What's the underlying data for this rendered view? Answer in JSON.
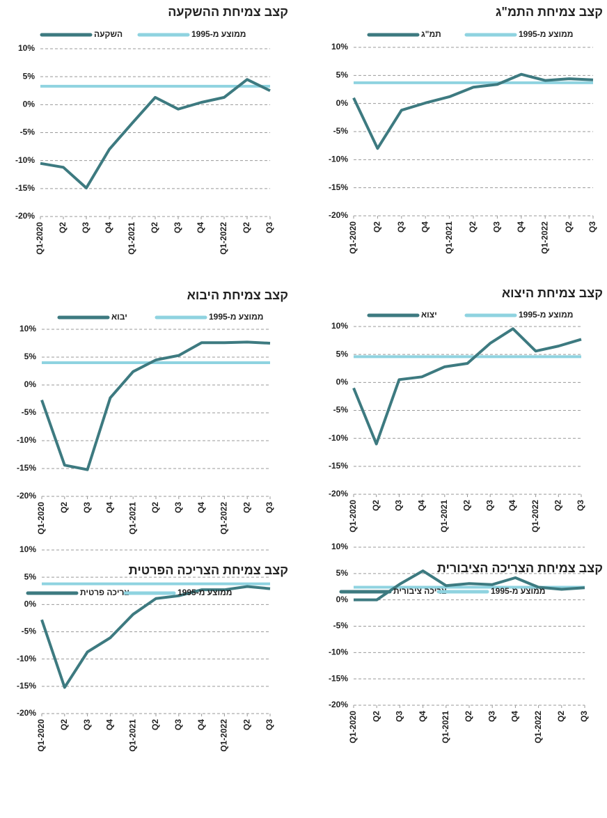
{
  "chart_data": [
    {
      "type": "line",
      "title": "קצב צמיחת התמ\"ג",
      "categories": [
        "Q1-2020",
        "Q2",
        "Q3",
        "Q4",
        "Q1-2021",
        "Q2",
        "Q3",
        "Q4",
        "Q1-2022",
        "Q2",
        "Q3"
      ],
      "series": [
        {
          "name": "תמ\"ג",
          "color": "#3d7a80",
          "values": [
            1.0,
            -8.0,
            -1.2,
            0.1,
            1.2,
            2.9,
            3.4,
            5.2,
            4.1,
            4.4,
            4.2
          ]
        },
        {
          "name": "ממוצע מ-1995",
          "color": "#8fd3e0",
          "values": [
            3.7,
            3.7,
            3.7,
            3.7,
            3.7,
            3.7,
            3.7,
            3.7,
            3.7,
            3.7,
            3.7
          ]
        }
      ],
      "ylim": [
        -20,
        10
      ],
      "yticks": [
        {
          "value": -20,
          "label": "-20%"
        },
        {
          "value": -15,
          "label": "-15%"
        },
        {
          "value": -10,
          "label": "-10%"
        },
        {
          "value": -5,
          "label": "-5%"
        },
        {
          "value": 0,
          "label": "0%"
        },
        {
          "value": 5,
          "label": "5%"
        },
        {
          "value": 10,
          "label": "10%"
        }
      ],
      "grid": true
    },
    {
      "type": "line",
      "title": "קצב צמיחת ההשקעה",
      "categories": [
        "Q1-2020",
        "Q2",
        "Q3",
        "Q4",
        "Q1-2021",
        "Q2",
        "Q3",
        "Q4",
        "Q1-2022",
        "Q2",
        "Q3"
      ],
      "series": [
        {
          "name": "השקעה",
          "color": "#3d7a80",
          "values": [
            -10.5,
            -11.2,
            -14.9,
            -8.0,
            -3.3,
            1.3,
            -0.8,
            0.4,
            1.3,
            4.5,
            2.5
          ]
        },
        {
          "name": "ממוצע מ-1995",
          "color": "#8fd3e0",
          "values": [
            3.3,
            3.3,
            3.3,
            3.3,
            3.3,
            3.3,
            3.3,
            3.3,
            3.3,
            3.3,
            3.3
          ]
        }
      ],
      "ylim": [
        -20,
        10
      ],
      "yticks": [
        {
          "value": -20,
          "label": "-20%"
        },
        {
          "value": -15,
          "label": "-15%"
        },
        {
          "value": -10,
          "label": "-10%"
        },
        {
          "value": -5,
          "label": "-5%"
        },
        {
          "value": 0,
          "label": "0%"
        },
        {
          "value": 5,
          "label": "5%"
        },
        {
          "value": 10,
          "label": "10%"
        }
      ],
      "grid": true
    },
    {
      "type": "line",
      "title": "קצב צמיחת היצוא",
      "categories": [
        "Q1-2020",
        "Q2",
        "Q3",
        "Q4",
        "Q1-2021",
        "Q2",
        "Q3",
        "Q4",
        "Q1-2022",
        "Q2",
        "Q3"
      ],
      "series": [
        {
          "name": "יצוא",
          "color": "#3d7a80",
          "values": [
            -1.0,
            -11.0,
            0.5,
            1.0,
            2.8,
            3.4,
            7.0,
            9.6,
            5.6,
            6.5,
            7.7
          ]
        },
        {
          "name": "ממוצע מ-1995",
          "color": "#8fd3e0",
          "values": [
            4.6,
            4.6,
            4.6,
            4.6,
            4.6,
            4.6,
            4.6,
            4.6,
            4.6,
            4.6,
            4.6
          ]
        }
      ],
      "ylim": [
        -20,
        10
      ],
      "yticks": [
        {
          "value": -20,
          "label": "-20%"
        },
        {
          "value": -15,
          "label": "-15%"
        },
        {
          "value": -10,
          "label": "-10%"
        },
        {
          "value": -5,
          "label": "-5%"
        },
        {
          "value": 0,
          "label": "0%"
        },
        {
          "value": 5,
          "label": "5%"
        },
        {
          "value": 10,
          "label": "10%"
        }
      ],
      "grid": true
    },
    {
      "type": "line",
      "title": "קצב צמיחת היבוא",
      "categories": [
        "Q1-2020",
        "Q2",
        "Q3",
        "Q4",
        "Q1-2021",
        "Q2",
        "Q3",
        "Q4",
        "Q1-2022",
        "Q2",
        "Q3"
      ],
      "series": [
        {
          "name": "יבוא",
          "color": "#3d7a80",
          "values": [
            -2.7,
            -14.4,
            -15.2,
            -2.3,
            2.4,
            4.5,
            5.3,
            7.6,
            7.6,
            7.7,
            7.5
          ]
        },
        {
          "name": "ממוצע מ-1995",
          "color": "#8fd3e0",
          "values": [
            4.0,
            4.0,
            4.0,
            4.0,
            4.0,
            4.0,
            4.0,
            4.0,
            4.0,
            4.0,
            4.0
          ]
        }
      ],
      "ylim": [
        -20,
        10
      ],
      "yticks": [
        {
          "value": -20,
          "label": "-20%"
        },
        {
          "value": -15,
          "label": "-15%"
        },
        {
          "value": -10,
          "label": "-10%"
        },
        {
          "value": -5,
          "label": "-5%"
        },
        {
          "value": 0,
          "label": "0%"
        },
        {
          "value": 5,
          "label": "5%"
        },
        {
          "value": 10,
          "label": "10%"
        }
      ],
      "grid": true
    },
    {
      "type": "line",
      "title": "קצב צמיחת הצריכה הציבורית",
      "categories": [
        "Q1-2020",
        "Q2",
        "Q3",
        "Q4",
        "Q1-2021",
        "Q2",
        "Q3",
        "Q4",
        "Q1-2022",
        "Q2",
        "Q3"
      ],
      "series": [
        {
          "name": "צריכה ציבורית",
          "color": "#3d7a80",
          "values": [
            0.0,
            0.0,
            3.0,
            5.5,
            2.7,
            3.1,
            2.9,
            4.2,
            2.4,
            2.0,
            2.3
          ]
        },
        {
          "name": "ממוצע מ-1995",
          "color": "#8fd3e0",
          "values": [
            2.4,
            2.4,
            2.4,
            2.4,
            2.4,
            2.4,
            2.4,
            2.4,
            2.4,
            2.4,
            2.4
          ]
        }
      ],
      "ylim": [
        -20,
        10
      ],
      "yticks": [
        {
          "value": -20,
          "label": "-20%"
        },
        {
          "value": -15,
          "label": "-15%"
        },
        {
          "value": -10,
          "label": "-10%"
        },
        {
          "value": -5,
          "label": "-5%"
        },
        {
          "value": 0,
          "label": "0%"
        },
        {
          "value": 5,
          "label": "5%"
        },
        {
          "value": 10,
          "label": "10%"
        }
      ],
      "grid": true
    },
    {
      "type": "line",
      "title": "קצב צמיחת הצריכה הפרטית",
      "categories": [
        "Q1-2020",
        "Q2",
        "Q3",
        "Q4",
        "Q1-2021",
        "Q2",
        "Q3",
        "Q4",
        "Q1-2022",
        "Q2",
        "Q3"
      ],
      "series": [
        {
          "name": "צריכה פרטית",
          "color": "#3d7a80",
          "values": [
            -2.8,
            -15.2,
            -8.7,
            -6.1,
            -1.8,
            1.1,
            1.6,
            2.7,
            2.7,
            3.3,
            2.9
          ]
        },
        {
          "name": "ממוצע מ-1995",
          "color": "#8fd3e0",
          "values": [
            3.8,
            3.8,
            3.8,
            3.8,
            3.8,
            3.8,
            3.8,
            3.8,
            3.8,
            3.8,
            3.8
          ]
        }
      ],
      "ylim": [
        -20,
        10
      ],
      "yticks": [
        {
          "value": -20,
          "label": "-20%"
        },
        {
          "value": -15,
          "label": "-15%"
        },
        {
          "value": -10,
          "label": "-10%"
        },
        {
          "value": -5,
          "label": "-5%"
        },
        {
          "value": 0,
          "label": "0%"
        },
        {
          "value": 5,
          "label": "5%"
        },
        {
          "value": 10,
          "label": "10%"
        }
      ],
      "grid": true
    }
  ]
}
